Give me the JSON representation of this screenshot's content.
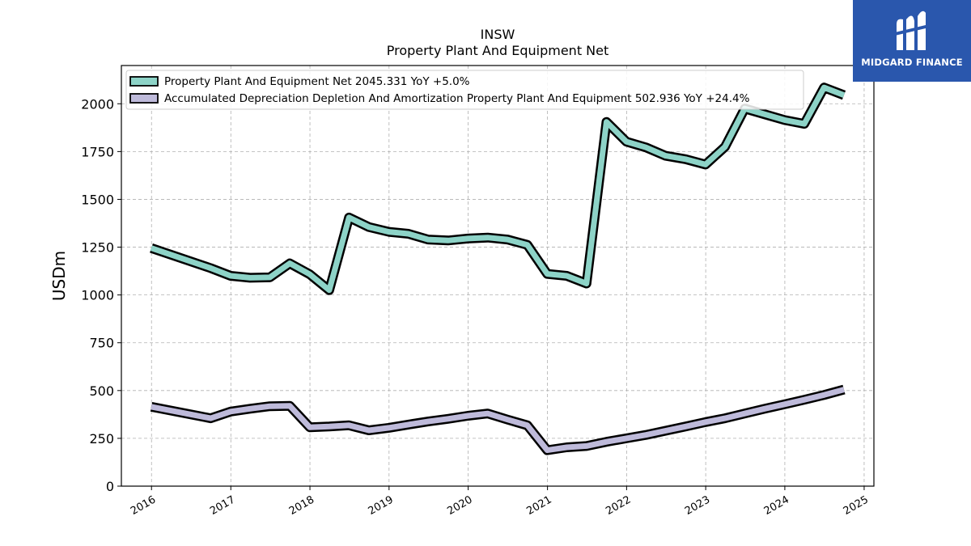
{
  "logo": {
    "text": "MIDGARD FINANCE",
    "background": "#2a57ad"
  },
  "chart_data": {
    "type": "line",
    "title": "INSW",
    "subtitle": "Property Plant And Equipment Net",
    "xlabel": "",
    "ylabel": "USDm",
    "xlim": [
      "2015-08-15",
      "2025-02-15"
    ],
    "ylim": [
      0,
      2200
    ],
    "x_ticks": [
      "2016",
      "2017",
      "2018",
      "2019",
      "2020",
      "2021",
      "2022",
      "2023",
      "2024",
      "2025"
    ],
    "y_ticks": [
      0,
      250,
      500,
      750,
      1000,
      1250,
      1500,
      1750,
      2000
    ],
    "grid": true,
    "legend_position": "top-left",
    "series": [
      {
        "name": "Property Plant And Equipment Net",
        "legend_label": "Property Plant And Equipment Net  2045.331 YoY +5.0%",
        "color": "#8dd3c7",
        "x": [
          "2015-12-31",
          "2016-09-30",
          "2016-12-31",
          "2017-03-31",
          "2017-06-30",
          "2017-09-30",
          "2017-12-31",
          "2018-03-31",
          "2018-06-30",
          "2018-09-30",
          "2018-12-31",
          "2019-03-31",
          "2019-06-30",
          "2019-09-30",
          "2019-12-31",
          "2020-03-31",
          "2020-06-30",
          "2020-09-30",
          "2020-12-31",
          "2021-03-31",
          "2021-06-30",
          "2021-09-30",
          "2021-12-31",
          "2022-03-31",
          "2022-06-30",
          "2022-09-30",
          "2022-12-31",
          "2023-03-31",
          "2023-06-30",
          "2023-09-30",
          "2023-12-31",
          "2024-03-31",
          "2024-06-30",
          "2024-09-30"
        ],
        "y": [
          1245,
          1140,
          1100,
          1090,
          1092,
          1165,
          1108,
          1025,
          1405,
          1355,
          1330,
          1320,
          1290,
          1285,
          1295,
          1300,
          1290,
          1262,
          1110,
          1100,
          1060,
          1905,
          1802,
          1772,
          1728,
          1710,
          1682,
          1775,
          1975,
          1945,
          1915,
          1895,
          2085,
          2045
        ]
      },
      {
        "name": "Accumulated Depreciation Depletion And Amortization Property Plant And Equipment",
        "legend_label": "Accumulated Depreciation Depletion And Amortization Property Plant And Equipment  502.936 YoY +24.4%",
        "color": "#bebada",
        "x": [
          "2015-12-31",
          "2016-09-30",
          "2016-12-31",
          "2017-03-31",
          "2017-06-30",
          "2017-09-30",
          "2017-12-31",
          "2018-03-31",
          "2018-06-30",
          "2018-09-30",
          "2018-12-31",
          "2019-03-31",
          "2019-06-30",
          "2019-09-30",
          "2019-12-31",
          "2020-03-31",
          "2020-06-30",
          "2020-09-30",
          "2020-12-31",
          "2021-03-31",
          "2021-06-30",
          "2021-09-30",
          "2021-12-31",
          "2022-03-31",
          "2022-06-30",
          "2022-09-30",
          "2022-12-31",
          "2023-03-31",
          "2023-06-30",
          "2023-09-30",
          "2023-12-31",
          "2024-03-31",
          "2024-06-30",
          "2024-09-30"
        ],
        "y": [
          415,
          355,
          390,
          405,
          418,
          420,
          308,
          312,
          318,
          292,
          305,
          322,
          338,
          352,
          368,
          380,
          348,
          318,
          188,
          203,
          210,
          232,
          250,
          268,
          290,
          312,
          335,
          355,
          380,
          405,
          428,
          452,
          477,
          505
        ]
      }
    ]
  }
}
